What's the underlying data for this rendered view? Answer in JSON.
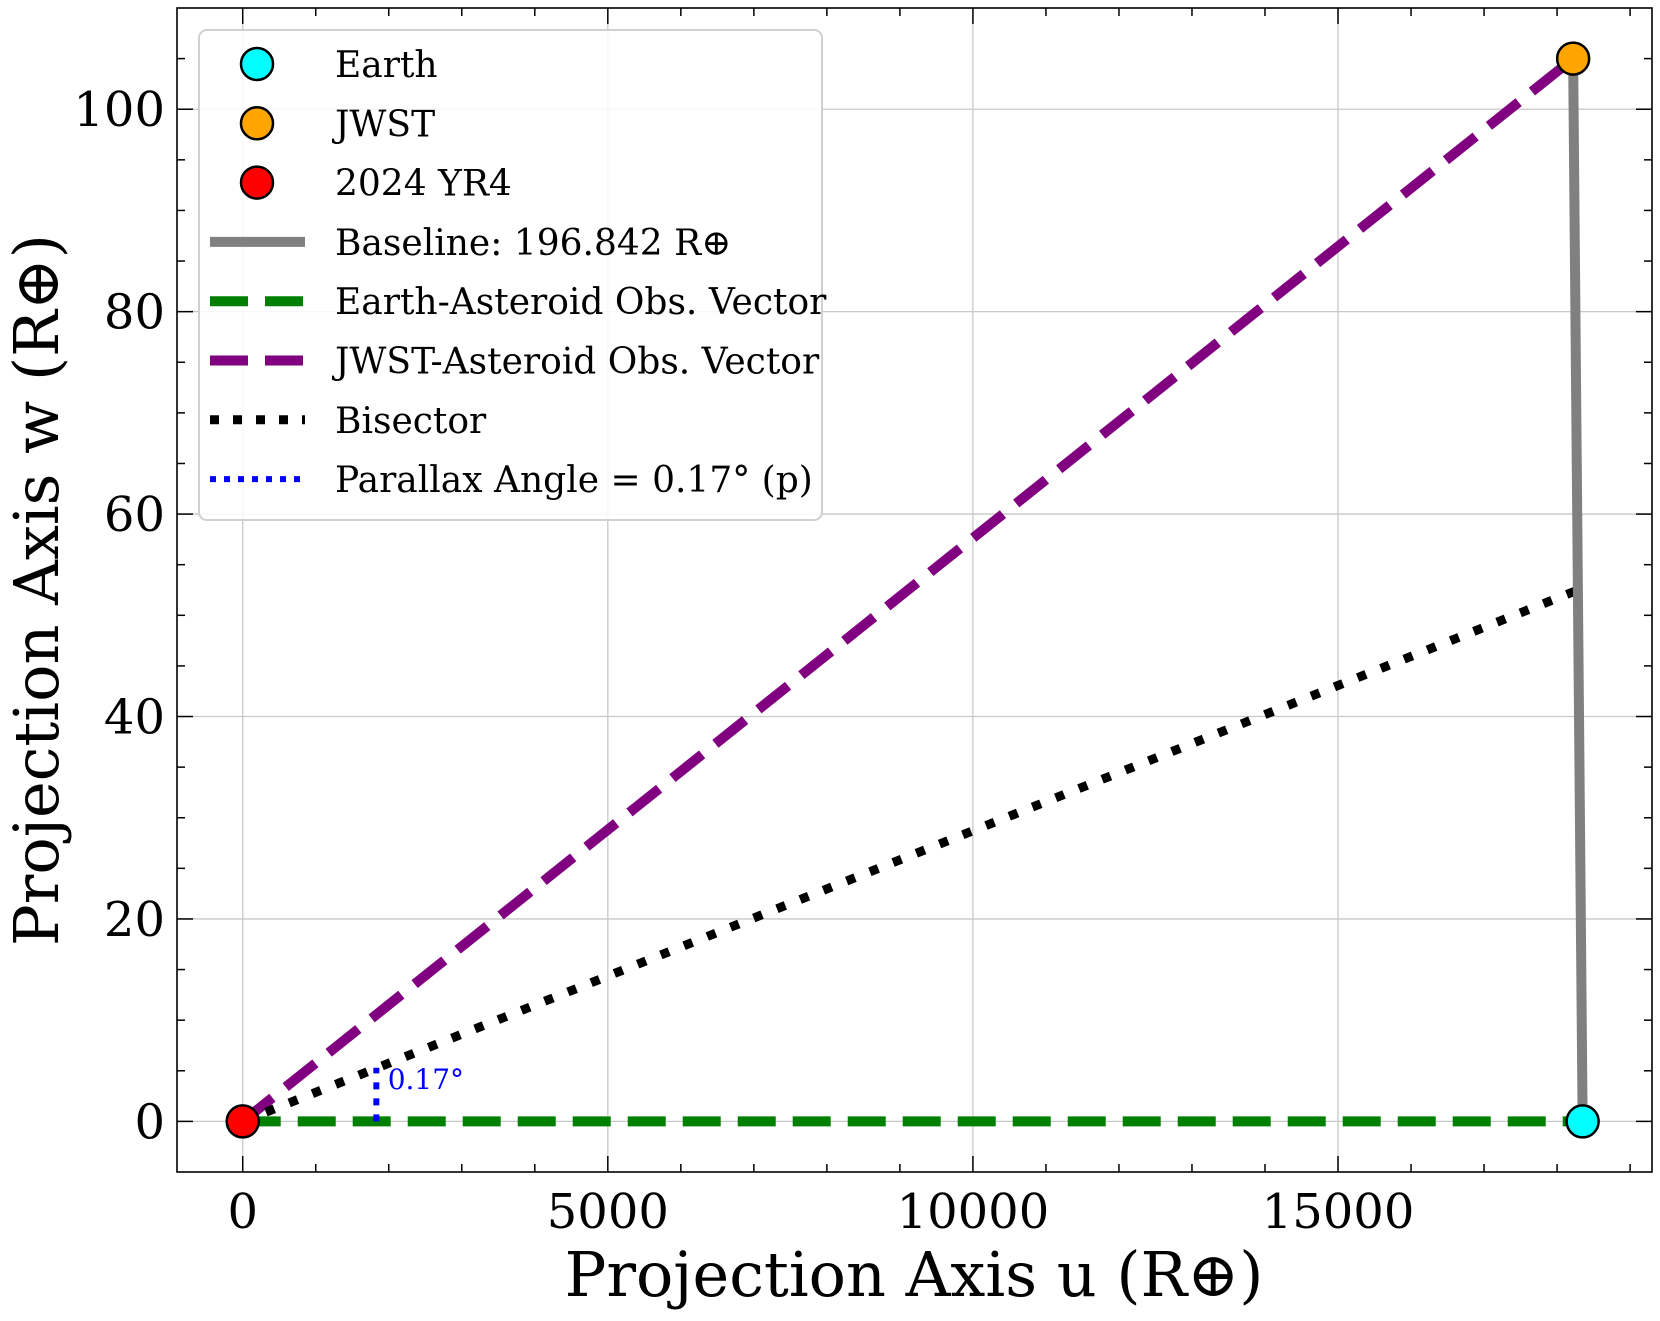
{
  "chart_data": {
    "type": "scatter",
    "xlabel": "Projection Axis u (R⊕)",
    "ylabel": "Projection Axis w (R⊕)",
    "xlim": [
      -900,
      19300
    ],
    "ylim": [
      -5,
      110
    ],
    "x_ticks": [
      0,
      5000,
      10000,
      15000
    ],
    "y_ticks": [
      0,
      20,
      40,
      60,
      80,
      100
    ],
    "x_tick_labels": [
      "0",
      "5000",
      "10000",
      "15000"
    ],
    "y_tick_labels": [
      "0",
      "20",
      "40",
      "60",
      "80",
      "100"
    ],
    "grid": true,
    "legend_position": "upper-left",
    "points": [
      {
        "name": "Earth",
        "x": 18350,
        "y": 0,
        "color": "#00ffff"
      },
      {
        "name": "JWST",
        "x": 18220,
        "y": 105,
        "color": "#ffa500"
      },
      {
        "name": "2024 YR4",
        "x": 0,
        "y": 0,
        "color": "#ff0000"
      }
    ],
    "lines": [
      {
        "name": "Baseline: 196.842 R⊕",
        "style": "solid",
        "color": "#808080",
        "x": [
          18220,
          18350
        ],
        "y": [
          105,
          0
        ]
      },
      {
        "name": "Earth-Asteroid Obs. Vector",
        "style": "dashed",
        "color": "#008000",
        "x": [
          0,
          18350
        ],
        "y": [
          0,
          0
        ]
      },
      {
        "name": "JWST-Asteroid Obs. Vector",
        "style": "dashed",
        "color": "#800080",
        "x": [
          0,
          18220
        ],
        "y": [
          0,
          105
        ]
      },
      {
        "name": "Bisector",
        "style": "dotted",
        "color": "#000000",
        "x": [
          0,
          18285
        ],
        "y": [
          0,
          52.5
        ]
      },
      {
        "name": "Parallax Angle = 0.17° (p)",
        "style": "dotted",
        "color": "#0000ff",
        "x": [
          1830,
          1830
        ],
        "y": [
          0,
          5.3
        ]
      }
    ],
    "legend": [
      {
        "label": "Earth",
        "kind": "marker",
        "color": "#00ffff"
      },
      {
        "label": "JWST",
        "kind": "marker",
        "color": "#ffa500"
      },
      {
        "label": "2024 YR4",
        "kind": "marker",
        "color": "#ff0000"
      },
      {
        "label": "Baseline: 196.842 R⊕",
        "kind": "solid",
        "color": "#808080"
      },
      {
        "label": "Earth-Asteroid Obs. Vector",
        "kind": "dashed",
        "color": "#008000"
      },
      {
        "label": "JWST-Asteroid Obs. Vector",
        "kind": "dashed",
        "color": "#800080"
      },
      {
        "label": "Bisector",
        "kind": "dotted",
        "color": "#000000"
      },
      {
        "label": "Parallax Angle = 0.17° (p)",
        "kind": "dotted",
        "color": "#0000ff"
      }
    ],
    "annotations": [
      {
        "text": "0.17°",
        "x": 2150,
        "y": 4.2,
        "color": "#0000ff"
      }
    ]
  }
}
